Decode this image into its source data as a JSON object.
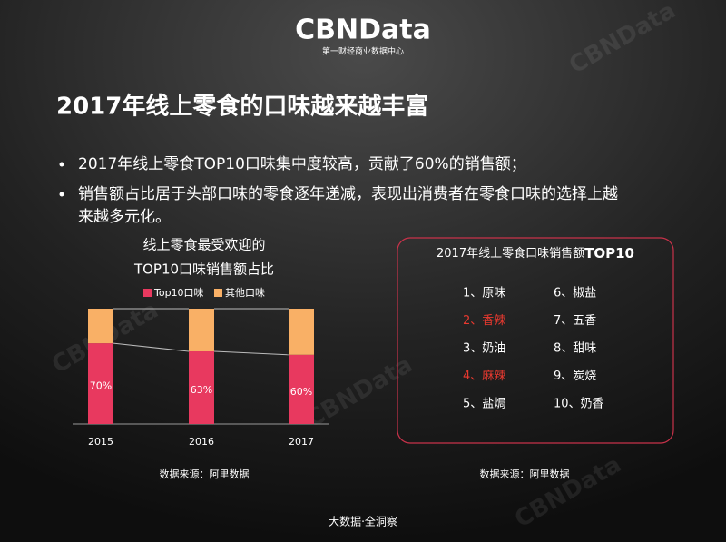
{
  "header": {
    "logo": "CBNData",
    "logo_subtitle": "第一财经商业数据中心"
  },
  "title": "2017年线上零食的口味越来越丰富",
  "bullets": [
    [
      "2017年线上零食TOP10口味集中度较高，贡献了60%的销售额；"
    ],
    [
      "销售额占比居于头部口味的零食逐年递减，表现出消费者在零食口味的选择上越",
      "来越多元化。"
    ]
  ],
  "chart_data": {
    "type": "bar",
    "stacked": true,
    "title": "线上零食最受欢迎的",
    "subtitle": "TOP10口味销售额占比",
    "categories": [
      "2015",
      "2016",
      "2017"
    ],
    "series": [
      {
        "name": "Top10口味",
        "color": "#e8395f",
        "values": [
          70,
          63,
          60
        ],
        "value_labels": [
          "70%",
          "63%",
          "60%"
        ]
      },
      {
        "name": "其他口味",
        "color": "#f9b066",
        "values": [
          30,
          37,
          40
        ]
      }
    ],
    "ylim": [
      0,
      100
    ],
    "source": "数据来源：阿里数据"
  },
  "ranking": {
    "title": "2017年线上零食口味销售额",
    "title_emphasis": "TOP10",
    "highlight_color": "#e8392f",
    "items": [
      {
        "label": "1、原味",
        "highlight": false
      },
      {
        "label": "2、香辣",
        "highlight": true
      },
      {
        "label": "3、奶油",
        "highlight": false
      },
      {
        "label": "4、麻辣",
        "highlight": true
      },
      {
        "label": "5、盐焗",
        "highlight": false
      },
      {
        "label": "6、椒盐",
        "highlight": false
      },
      {
        "label": "7、五香",
        "highlight": false
      },
      {
        "label": "8、甜味",
        "highlight": false
      },
      {
        "label": "9、炭烧",
        "highlight": false
      },
      {
        "label": "10、奶香",
        "highlight": false
      }
    ],
    "source": "数据来源：阿里数据"
  },
  "footer": "大数据·全洞察",
  "watermark": "CBNData"
}
